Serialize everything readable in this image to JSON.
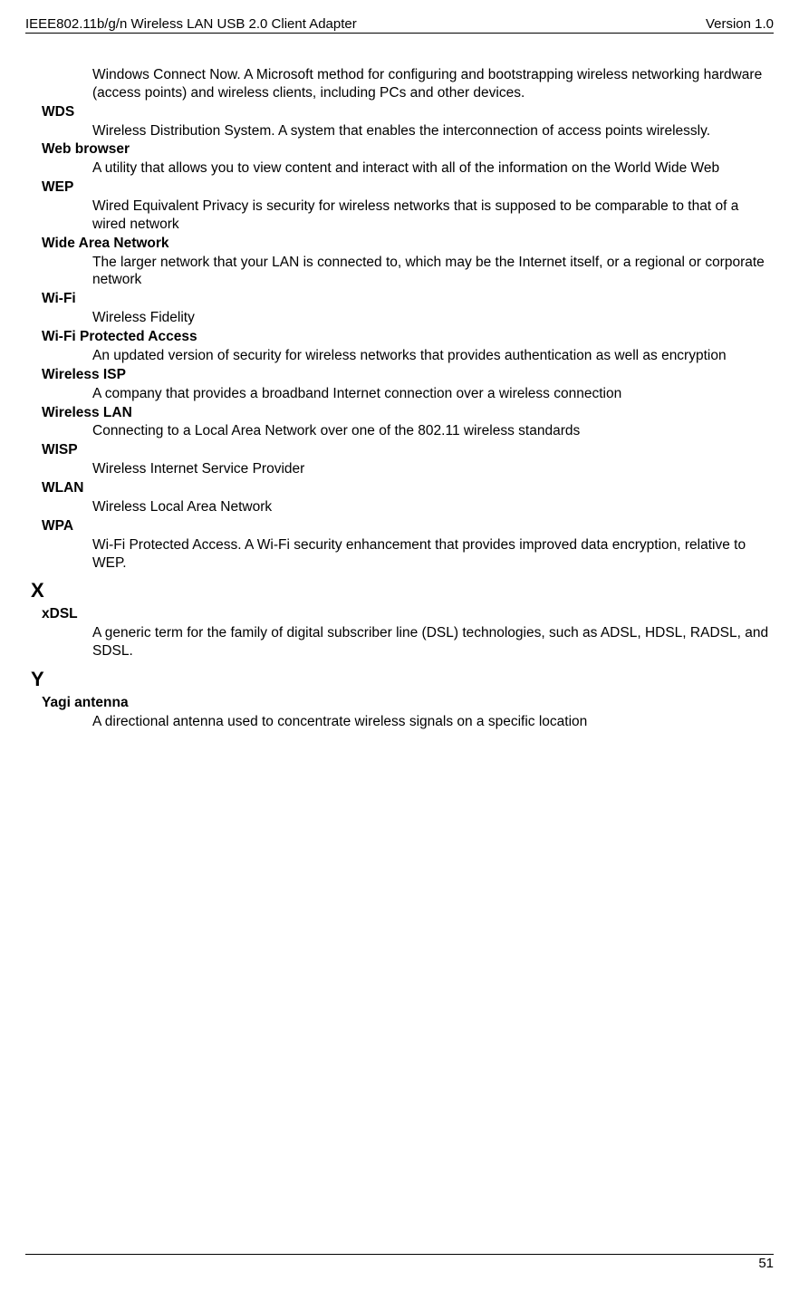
{
  "header": {
    "left": "IEEE802.11b/g/n Wireless LAN USB 2.0 Client Adapter",
    "right": "Version 1.0"
  },
  "intro": "Windows Connect Now. A Microsoft method for configuring and bootstrapping wireless networking hardware (access points) and wireless clients, including PCs and other devices.",
  "entries": [
    {
      "term": "WDS",
      "def": "Wireless Distribution System. A system that enables the interconnection of access points wirelessly."
    },
    {
      "term": "Web browser",
      "def": "A utility that allows you to view content and interact with all of the information on the World Wide Web"
    },
    {
      "term": "WEP",
      "def": "Wired Equivalent Privacy is security for wireless networks that is supposed to be comparable to that of a wired network"
    },
    {
      "term": "Wide Area Network",
      "def": "The larger network that your LAN is connected to, which may be the Internet itself, or a regional or corporate network"
    },
    {
      "term": "Wi-Fi",
      "def": "Wireless Fidelity"
    },
    {
      "term": "Wi-Fi Protected Access",
      "def": "An updated version of security for wireless networks that provides authentication as well as encryption"
    },
    {
      "term": "Wireless ISP",
      "def": "A company that provides a broadband Internet connection over a wireless connection"
    },
    {
      "term": "Wireless LAN",
      "def": "Connecting to a Local Area Network over one of the 802.11 wireless standards"
    },
    {
      "term": "WISP",
      "def": "Wireless Internet Service Provider"
    },
    {
      "term": "WLAN",
      "def": "Wireless Local Area Network"
    },
    {
      "term": "WPA",
      "def": "Wi-Fi Protected Access. A Wi-Fi security enhancement that provides improved data encryption, relative to WEP."
    }
  ],
  "sectionX": {
    "letter": "X",
    "term": "xDSL",
    "def": "A generic term for the family of digital subscriber line (DSL) technologies, such as ADSL, HDSL, RADSL, and SDSL."
  },
  "sectionY": {
    "letter": "Y",
    "term": "Yagi antenna",
    "def": "A directional antenna used to concentrate wireless signals on a specific location"
  },
  "footer": {
    "page": "51"
  }
}
